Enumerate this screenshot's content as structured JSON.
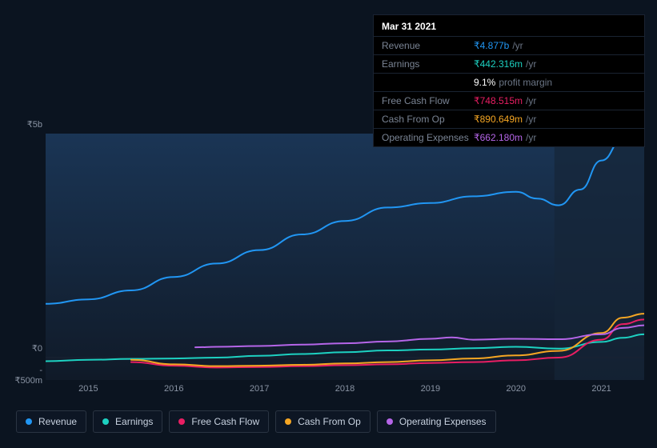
{
  "tooltip": {
    "date": "Mar 31 2021",
    "rows": [
      {
        "label": "Revenue",
        "value": "₹4.877b",
        "unit": "/yr",
        "color": "#2196f3"
      },
      {
        "label": "Earnings",
        "value": "₹442.316m",
        "unit": "/yr",
        "color": "#1dd1c1"
      },
      {
        "label": "",
        "value": "9.1%",
        "unit": "profit margin",
        "color": "#ffffff"
      },
      {
        "label": "Free Cash Flow",
        "value": "₹748.515m",
        "unit": "/yr",
        "color": "#e91e63"
      },
      {
        "label": "Cash From Op",
        "value": "₹890.649m",
        "unit": "/yr",
        "color": "#f5a623"
      },
      {
        "label": "Operating Expenses",
        "value": "₹662.180m",
        "unit": "/yr",
        "color": "#b565e8"
      }
    ]
  },
  "chart": {
    "type": "line",
    "background_color": "#0b1420",
    "plot_gradient_top": "#1a3555",
    "plot_gradient_bottom": "#101a28",
    "grid_color": "#1a2332",
    "axis_label_color": "#8a94a4",
    "axis_fontsize": 11,
    "highlight_band_x": [
      0.85,
      1.0
    ],
    "highlight_band_fill": "#152538",
    "y_axis": {
      "ticks": [
        {
          "value": 5000,
          "label": "₹5b",
          "pos": 0.0
        },
        {
          "value": 0,
          "label": "₹0",
          "pos": 0.909
        },
        {
          "value": -500,
          "label": "-₹500m",
          "pos": 1.0
        }
      ],
      "min": -500,
      "max": 5000
    },
    "x_axis": {
      "min": 2014.5,
      "max": 2021.5,
      "ticks": [
        2015,
        2016,
        2017,
        2018,
        2019,
        2020,
        2021
      ]
    },
    "series": [
      {
        "name": "Revenue",
        "color": "#2196f3",
        "width": 2,
        "points": [
          [
            2014.5,
            1200
          ],
          [
            2015,
            1300
          ],
          [
            2015.5,
            1500
          ],
          [
            2016,
            1800
          ],
          [
            2016.5,
            2100
          ],
          [
            2017,
            2400
          ],
          [
            2017.5,
            2750
          ],
          [
            2018,
            3050
          ],
          [
            2018.5,
            3350
          ],
          [
            2019,
            3450
          ],
          [
            2019.5,
            3600
          ],
          [
            2020,
            3700
          ],
          [
            2020.25,
            3550
          ],
          [
            2020.5,
            3400
          ],
          [
            2020.75,
            3750
          ],
          [
            2021,
            4400
          ],
          [
            2021.25,
            4877
          ],
          [
            2021.5,
            5200
          ]
        ]
      },
      {
        "name": "Earnings",
        "color": "#1dd1c1",
        "width": 2,
        "points": [
          [
            2014.5,
            -80
          ],
          [
            2015,
            -50
          ],
          [
            2015.5,
            -30
          ],
          [
            2016,
            -20
          ],
          [
            2016.5,
            0
          ],
          [
            2017,
            40
          ],
          [
            2017.5,
            80
          ],
          [
            2018,
            120
          ],
          [
            2018.5,
            160
          ],
          [
            2019,
            180
          ],
          [
            2019.5,
            210
          ],
          [
            2020,
            240
          ],
          [
            2020.5,
            200
          ],
          [
            2021,
            350
          ],
          [
            2021.25,
            442
          ],
          [
            2021.5,
            520
          ]
        ]
      },
      {
        "name": "Free Cash Flow",
        "color": "#e91e63",
        "width": 2,
        "points": [
          [
            2015.5,
            -100
          ],
          [
            2016,
            -180
          ],
          [
            2016.5,
            -220
          ],
          [
            2017,
            -210
          ],
          [
            2017.5,
            -190
          ],
          [
            2018,
            -170
          ],
          [
            2018.5,
            -150
          ],
          [
            2019,
            -120
          ],
          [
            2019.5,
            -100
          ],
          [
            2020,
            -60
          ],
          [
            2020.5,
            0
          ],
          [
            2021,
            400
          ],
          [
            2021.25,
            748
          ],
          [
            2021.5,
            850
          ]
        ]
      },
      {
        "name": "Cash From Op",
        "color": "#f5a623",
        "width": 2,
        "points": [
          [
            2015.5,
            -50
          ],
          [
            2016,
            -150
          ],
          [
            2016.5,
            -190
          ],
          [
            2017,
            -180
          ],
          [
            2017.5,
            -160
          ],
          [
            2018,
            -130
          ],
          [
            2018.5,
            -100
          ],
          [
            2019,
            -60
          ],
          [
            2019.5,
            -20
          ],
          [
            2020,
            50
          ],
          [
            2020.5,
            150
          ],
          [
            2021,
            550
          ],
          [
            2021.25,
            891
          ],
          [
            2021.5,
            980
          ]
        ]
      },
      {
        "name": "Operating Expenses",
        "color": "#b565e8",
        "width": 2,
        "points": [
          [
            2016.25,
            230
          ],
          [
            2016.5,
            240
          ],
          [
            2017,
            260
          ],
          [
            2017.5,
            290
          ],
          [
            2018,
            320
          ],
          [
            2018.5,
            360
          ],
          [
            2019,
            420
          ],
          [
            2019.25,
            450
          ],
          [
            2019.5,
            400
          ],
          [
            2020,
            420
          ],
          [
            2020.5,
            410
          ],
          [
            2021,
            520
          ],
          [
            2021.25,
            662
          ],
          [
            2021.5,
            720
          ]
        ]
      }
    ],
    "marker_x": 2021.25
  },
  "legend": {
    "items": [
      {
        "label": "Revenue",
        "color": "#2196f3"
      },
      {
        "label": "Earnings",
        "color": "#1dd1c1"
      },
      {
        "label": "Free Cash Flow",
        "color": "#e91e63"
      },
      {
        "label": "Cash From Op",
        "color": "#f5a623"
      },
      {
        "label": "Operating Expenses",
        "color": "#b565e8"
      }
    ],
    "border_color": "#2a3442",
    "text_color": "#c8d2e0",
    "fontsize": 12
  }
}
